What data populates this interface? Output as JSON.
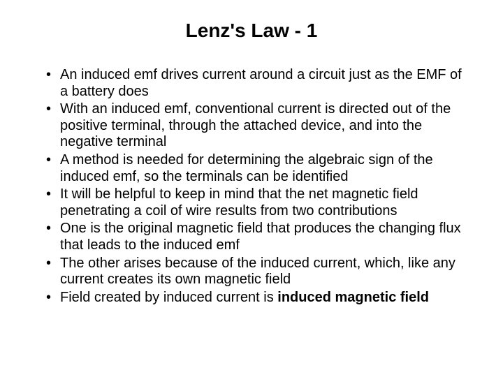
{
  "title": "Lenz's Law - 1",
  "bullets": [
    {
      "text": "An induced emf drives current around a circuit just as the EMF of a battery does"
    },
    {
      "text": "With an induced emf, conventional current is directed out of the positive terminal, through the attached device, and into the negative terminal"
    },
    {
      "text": "A method is needed for determining the algebraic sign of the induced emf, so the terminals can be identified"
    },
    {
      "text": "It will be helpful to keep in mind that the net magnetic field penetrating a coil of wire results from two contributions"
    },
    {
      "text": "One is the original magnetic field that produces the changing flux that leads to the induced emf"
    },
    {
      "text": "The other arises because of the induced current, which, like any current creates its own magnetic field"
    },
    {
      "prefix": "Field created by induced current is ",
      "bold": "induced magnetic field"
    }
  ],
  "colors": {
    "background": "#ffffff",
    "text": "#000000"
  },
  "typography": {
    "title_fontsize": 28,
    "body_fontsize": 20,
    "font_family": "Arial"
  }
}
